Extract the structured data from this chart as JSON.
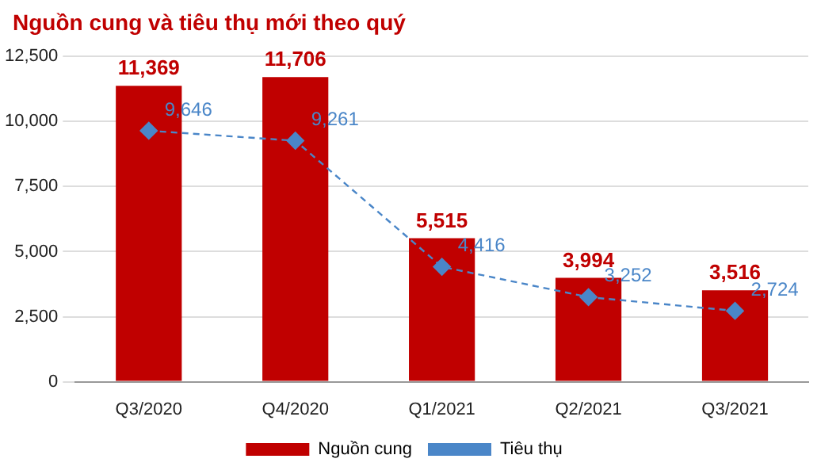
{
  "chart_data": {
    "type": "bar",
    "title": "Nguồn cung và tiêu thụ mới theo quý",
    "categories": [
      "Q3/2020",
      "Q4/2020",
      "Q1/2021",
      "Q2/2021",
      "Q3/2021"
    ],
    "series": [
      {
        "name": "Nguồn cung",
        "color": "#c00000",
        "values": [
          11369,
          11706,
          5515,
          3994,
          3516
        ],
        "value_labels": [
          "11,369",
          "11,706",
          "5,515",
          "3,994",
          "3,516"
        ]
      },
      {
        "name": "Tiêu thụ",
        "type": "line",
        "color": "#4a86c8",
        "marker": "diamond",
        "line_style": "dashed",
        "values": [
          9646,
          9261,
          4416,
          3252,
          2724
        ],
        "value_labels": [
          "9,646",
          "9,261",
          "4,416",
          "3,252",
          "2,724"
        ]
      }
    ],
    "ylim": [
      0,
      12500
    ],
    "yticks": [
      {
        "value": 0,
        "label": "0"
      },
      {
        "value": 2500,
        "label": "2,500"
      },
      {
        "value": 5000,
        "label": "5,000"
      },
      {
        "value": 7500,
        "label": "7,500"
      },
      {
        "value": 10000,
        "label": "10,000"
      },
      {
        "value": 12500,
        "label": "12,500"
      }
    ],
    "grid": "y",
    "legend": "bottom"
  }
}
